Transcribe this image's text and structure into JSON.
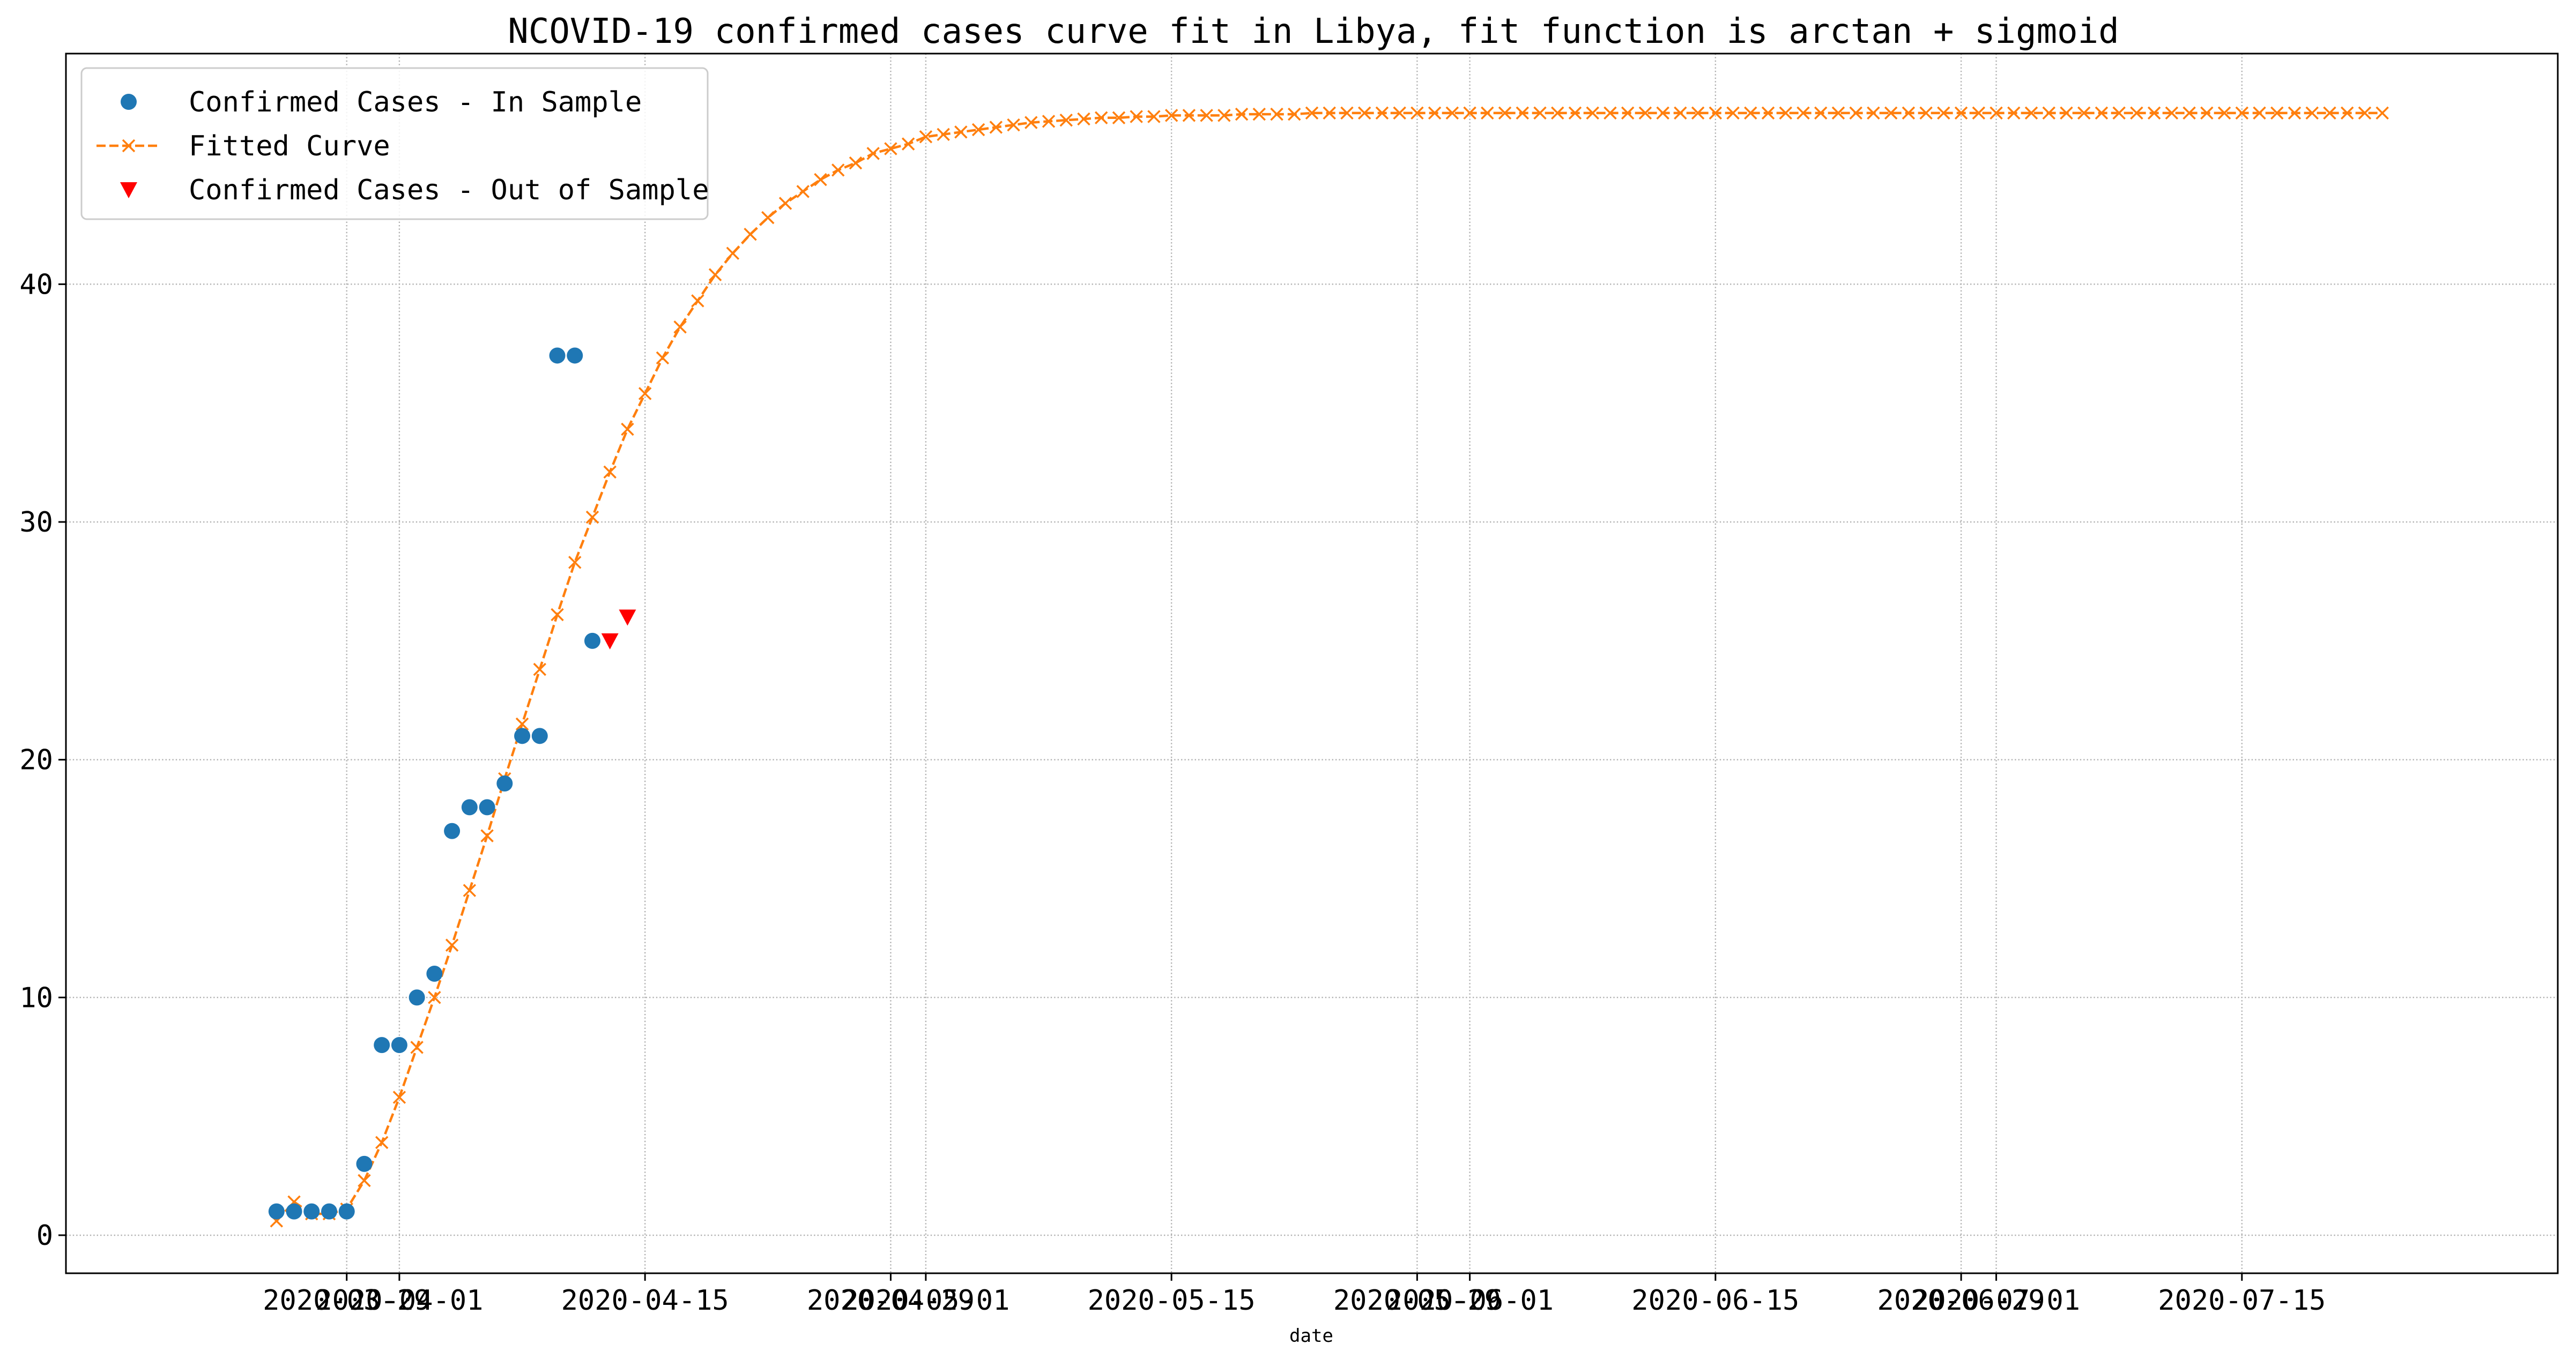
{
  "chart_data": {
    "type": "line",
    "title": "NCOVID-19 confirmed cases curve fit in Libya, fit function is arctan + sigmoid",
    "xlabel": "date",
    "ylabel": "",
    "x_axis": {
      "scale": "date",
      "range": [
        "2020-03-13",
        "2020-08-02"
      ],
      "ticks": [
        "2020-03-29",
        "2020-04-01",
        "2020-04-15",
        "2020-04-29",
        "2020-05-01",
        "2020-05-15",
        "2020-05-29",
        "2020-06-01",
        "2020-06-15",
        "2020-06-29",
        "2020-07-01",
        "2020-07-15"
      ]
    },
    "y_axis": {
      "range": [
        -1.6,
        49.7
      ],
      "ticks": [
        0,
        10,
        20,
        30,
        40
      ]
    },
    "grid": true,
    "legend": {
      "placement": "top-left"
    },
    "series": [
      {
        "name": "Confirmed Cases - In Sample",
        "marker": "circle",
        "color": "#1f77b4",
        "x": [
          "2020-03-25",
          "2020-03-26",
          "2020-03-27",
          "2020-03-28",
          "2020-03-29",
          "2020-03-30",
          "2020-03-31",
          "2020-04-01",
          "2020-04-02",
          "2020-04-03",
          "2020-04-04",
          "2020-04-05",
          "2020-04-06",
          "2020-04-07",
          "2020-04-08",
          "2020-04-09",
          "2020-04-10",
          "2020-04-11",
          "2020-04-12"
        ],
        "y": [
          1,
          1,
          1,
          1,
          1,
          3,
          8,
          8,
          10,
          11,
          17,
          18,
          18,
          19,
          21,
          21,
          37,
          37,
          25
        ]
      },
      {
        "name": "Fitted Curve",
        "marker": "x",
        "linestyle": "dashed",
        "color": "#ff7f0e",
        "x_start": "2020-03-25",
        "x_end": "2020-07-23",
        "step_days": 1,
        "y": [
          0.6,
          1.4,
          0.9,
          0.9,
          1.1,
          2.3,
          3.9,
          5.8,
          7.9,
          10.0,
          12.2,
          14.5,
          16.8,
          19.2,
          21.5,
          23.8,
          26.1,
          28.3,
          30.2,
          32.1,
          33.9,
          35.4,
          36.9,
          38.2,
          39.3,
          40.4,
          41.3,
          42.1,
          42.8,
          43.4,
          43.9,
          44.4,
          44.8,
          45.1,
          45.5,
          45.7,
          45.9,
          46.2,
          46.3,
          46.4,
          46.5,
          46.6,
          46.7,
          46.8,
          46.85,
          46.9,
          46.95,
          47.0,
          47.0,
          47.05,
          47.05,
          47.1,
          47.1,
          47.1,
          47.1,
          47.15,
          47.15,
          47.15,
          47.15,
          47.2,
          47.2,
          47.2,
          47.2,
          47.2,
          47.2,
          47.2,
          47.2,
          47.2,
          47.2,
          47.2,
          47.2,
          47.2,
          47.2,
          47.2,
          47.2,
          47.2,
          47.2,
          47.2,
          47.2,
          47.2,
          47.2,
          47.2,
          47.2,
          47.2,
          47.2,
          47.2,
          47.2,
          47.2,
          47.2,
          47.2,
          47.2,
          47.2,
          47.2,
          47.2,
          47.2,
          47.2,
          47.2,
          47.2,
          47.2,
          47.2,
          47.2,
          47.2,
          47.2,
          47.2,
          47.2,
          47.2,
          47.2,
          47.2,
          47.2,
          47.2,
          47.2,
          47.2,
          47.2,
          47.2,
          47.2,
          47.2,
          47.2,
          47.2,
          47.2,
          47.2,
          47.2
        ]
      },
      {
        "name": "Confirmed Cases - Out of Sample",
        "marker": "triangle-down",
        "color": "#ff0000",
        "x": [
          "2020-04-13",
          "2020-04-14"
        ],
        "y": [
          25,
          26
        ]
      }
    ]
  }
}
